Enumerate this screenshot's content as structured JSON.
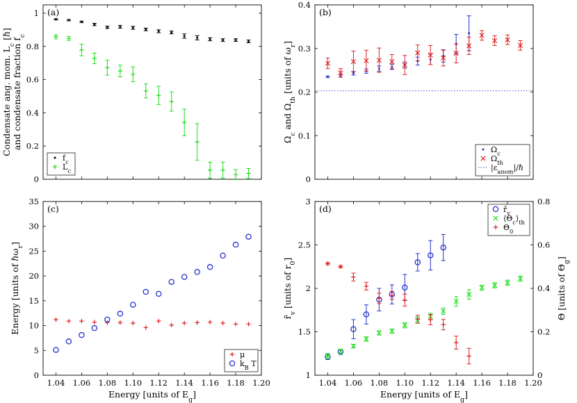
{
  "chart_data": [
    {
      "panel": "(a)",
      "type": "scatter",
      "ylabel_line1": "Condensate ang. mom. L_c [ℏ]",
      "ylabel_line2": "and condensate fraction f_c",
      "xlim": [
        1.03,
        1.2
      ],
      "ylim": [
        0,
        1.05
      ],
      "yticks": [
        0,
        0.2,
        0.4,
        0.6,
        0.8,
        1
      ],
      "legend_position": "bottom-left",
      "series": [
        {
          "name": "f_c",
          "color": "#000000",
          "marker": "dot-errorbar",
          "x": [
            1.04,
            1.05,
            1.06,
            1.07,
            1.08,
            1.09,
            1.1,
            1.11,
            1.12,
            1.13,
            1.14,
            1.15,
            1.16,
            1.17,
            1.18,
            1.19
          ],
          "y": [
            0.963,
            0.958,
            0.948,
            0.932,
            0.915,
            0.918,
            0.912,
            0.902,
            0.891,
            0.884,
            0.862,
            0.852,
            0.843,
            0.838,
            0.838,
            0.83
          ],
          "err": [
            0.004,
            0.004,
            0.005,
            0.007,
            0.007,
            0.008,
            0.009,
            0.008,
            0.009,
            0.008,
            0.013,
            0.013,
            0.009,
            0.008,
            0.008,
            0.008
          ]
        },
        {
          "name": "L_c",
          "color": "#22dd22",
          "marker": "plus-errorbar",
          "x": [
            1.04,
            1.05,
            1.06,
            1.07,
            1.08,
            1.09,
            1.1,
            1.11,
            1.12,
            1.13,
            1.14,
            1.15,
            1.16,
            1.17,
            1.18,
            1.19
          ],
          "y": [
            0.858,
            0.848,
            0.778,
            0.728,
            0.672,
            0.652,
            0.632,
            0.532,
            0.505,
            0.468,
            0.342,
            0.225,
            0.055,
            0.055,
            0.028,
            0.035
          ],
          "err": [
            0.012,
            0.012,
            0.035,
            0.032,
            0.045,
            0.035,
            0.045,
            0.042,
            0.055,
            0.058,
            0.08,
            0.11,
            0.048,
            0.048,
            0.03,
            0.03
          ]
        }
      ]
    },
    {
      "panel": "(b)",
      "type": "scatter",
      "ylabel": "Ω_c and Ω_th [units of ω_r]",
      "xlim": [
        1.03,
        1.2
      ],
      "ylim": [
        0,
        0.4
      ],
      "yticks": [
        0,
        0.1,
        0.2,
        0.3,
        0.4
      ],
      "legend_position": "bottom-right",
      "reference_line": {
        "name": "|ε_anom|/ℏ",
        "y": 0.203,
        "color": "#4444cc",
        "style": "dotted"
      },
      "series": [
        {
          "name": "Ω_c",
          "color": "#2233cc",
          "marker": "dot-errorbar",
          "x": [
            1.04,
            1.05,
            1.06,
            1.07,
            1.08,
            1.09,
            1.1,
            1.11,
            1.12,
            1.13,
            1.14,
            1.15
          ],
          "y": [
            0.235,
            0.237,
            0.243,
            0.248,
            0.254,
            0.258,
            0.262,
            0.271,
            0.275,
            0.283,
            0.31,
            0.335
          ],
          "err": [
            0.002,
            0.003,
            0.004,
            0.005,
            0.006,
            0.006,
            0.007,
            0.009,
            0.012,
            0.014,
            0.022,
            0.04
          ]
        },
        {
          "name": "Ω_th",
          "color": "#dd2222",
          "marker": "x-errorbar",
          "x": [
            1.04,
            1.05,
            1.06,
            1.07,
            1.08,
            1.09,
            1.1,
            1.11,
            1.12,
            1.13,
            1.14,
            1.15,
            1.16,
            1.17,
            1.18,
            1.19
          ],
          "y": [
            0.266,
            0.244,
            0.27,
            0.272,
            0.273,
            0.27,
            0.262,
            0.29,
            0.285,
            0.278,
            0.289,
            0.306,
            0.33,
            0.318,
            0.32,
            0.307
          ],
          "err": [
            0.012,
            0.01,
            0.024,
            0.024,
            0.028,
            0.016,
            0.022,
            0.018,
            0.022,
            0.018,
            0.022,
            0.02,
            0.011,
            0.011,
            0.011,
            0.011
          ]
        }
      ]
    },
    {
      "panel": "(c)",
      "type": "scatter",
      "ylabel": "Energy [units of ℏω_r]",
      "xlabel": "Energy [units of E_g]",
      "xlim": [
        1.03,
        1.2
      ],
      "ylim": [
        0,
        35
      ],
      "yticks": [
        0,
        5,
        10,
        15,
        20,
        25,
        30,
        35
      ],
      "xticks": [
        1.04,
        1.06,
        1.08,
        1.1,
        1.12,
        1.14,
        1.16,
        1.18,
        1.2
      ],
      "legend_position": "bottom-right",
      "series": [
        {
          "name": "μ",
          "color": "#dd2222",
          "marker": "plus",
          "x": [
            1.04,
            1.05,
            1.06,
            1.07,
            1.08,
            1.09,
            1.1,
            1.11,
            1.12,
            1.13,
            1.14,
            1.15,
            1.16,
            1.17,
            1.18,
            1.19
          ],
          "y": [
            11.2,
            10.9,
            10.9,
            10.7,
            10.6,
            10.6,
            10.5,
            9.6,
            10.9,
            10.1,
            10.5,
            10.6,
            10.7,
            10.5,
            10.3,
            10.3
          ]
        },
        {
          "name": "k_B T",
          "color": "#2233cc",
          "marker": "circle",
          "x": [
            1.04,
            1.05,
            1.06,
            1.07,
            1.08,
            1.09,
            1.1,
            1.11,
            1.12,
            1.13,
            1.14,
            1.15,
            1.16,
            1.17,
            1.18,
            1.19
          ],
          "y": [
            5.1,
            6.8,
            8.1,
            9.5,
            11.2,
            12.4,
            14.2,
            16.8,
            16.4,
            18.8,
            19.8,
            20.8,
            21.8,
            24.1,
            26.3,
            27.9
          ]
        }
      ]
    },
    {
      "panel": "(d)",
      "type": "scatter",
      "ylabel": "r̄_v [units of r_0]",
      "ylabel_right": "Θ [units of Θ_g]",
      "xlabel": "Energy [units of E_g]",
      "xlim": [
        1.03,
        1.2
      ],
      "ylim": [
        1,
        3
      ],
      "ylim_right": [
        0,
        0.8
      ],
      "yticks": [
        1,
        1.5,
        2,
        2.5,
        3
      ],
      "yticks_right": [
        0,
        0.2,
        0.4,
        0.6,
        0.8
      ],
      "xticks": [
        1.04,
        1.06,
        1.08,
        1.1,
        1.12,
        1.14,
        1.16,
        1.18,
        1.2
      ],
      "legend_position": "top-right",
      "series": [
        {
          "name": "r̄_v",
          "axis": "left",
          "color": "#2233cc",
          "marker": "circle-errorbar",
          "x": [
            1.04,
            1.05,
            1.06,
            1.07,
            1.08,
            1.09,
            1.1,
            1.11,
            1.12,
            1.13
          ],
          "y": [
            1.21,
            1.27,
            1.53,
            1.7,
            1.87,
            1.93,
            2.01,
            2.3,
            2.38,
            2.47
          ],
          "err": [
            0.03,
            0.03,
            0.11,
            0.11,
            0.13,
            0.11,
            0.15,
            0.1,
            0.17,
            0.15
          ]
        },
        {
          "name": "⟨Θ_c⟩_th",
          "axis": "right",
          "color": "#22dd22",
          "marker": "x-errorbar",
          "x": [
            1.04,
            1.05,
            1.06,
            1.07,
            1.08,
            1.09,
            1.1,
            1.11,
            1.12,
            1.13,
            1.14,
            1.15,
            1.16,
            1.17,
            1.18,
            1.19
          ],
          "y": [
            0.088,
            0.11,
            0.134,
            0.167,
            0.195,
            0.203,
            0.23,
            0.254,
            0.27,
            0.295,
            0.34,
            0.372,
            0.403,
            0.414,
            0.426,
            0.445
          ],
          "err": [
            0.012,
            0.01,
            0.008,
            0.01,
            0.01,
            0.01,
            0.012,
            0.015,
            0.015,
            0.015,
            0.022,
            0.022,
            0.012,
            0.012,
            0.012,
            0.012
          ]
        },
        {
          "name": "Θ_0",
          "axis": "right",
          "color": "#dd2222",
          "marker": "plus-errorbar",
          "x": [
            1.04,
            1.05,
            1.06,
            1.07,
            1.08,
            1.09,
            1.1,
            1.11,
            1.12,
            1.13,
            1.14,
            1.15
          ],
          "y": [
            0.514,
            0.5,
            0.452,
            0.41,
            0.354,
            0.368,
            0.346,
            0.258,
            0.256,
            0.233,
            0.15,
            0.088
          ],
          "err": [
            0.005,
            0.005,
            0.018,
            0.018,
            0.024,
            0.018,
            0.028,
            0.018,
            0.024,
            0.024,
            0.03,
            0.036
          ]
        }
      ]
    }
  ]
}
